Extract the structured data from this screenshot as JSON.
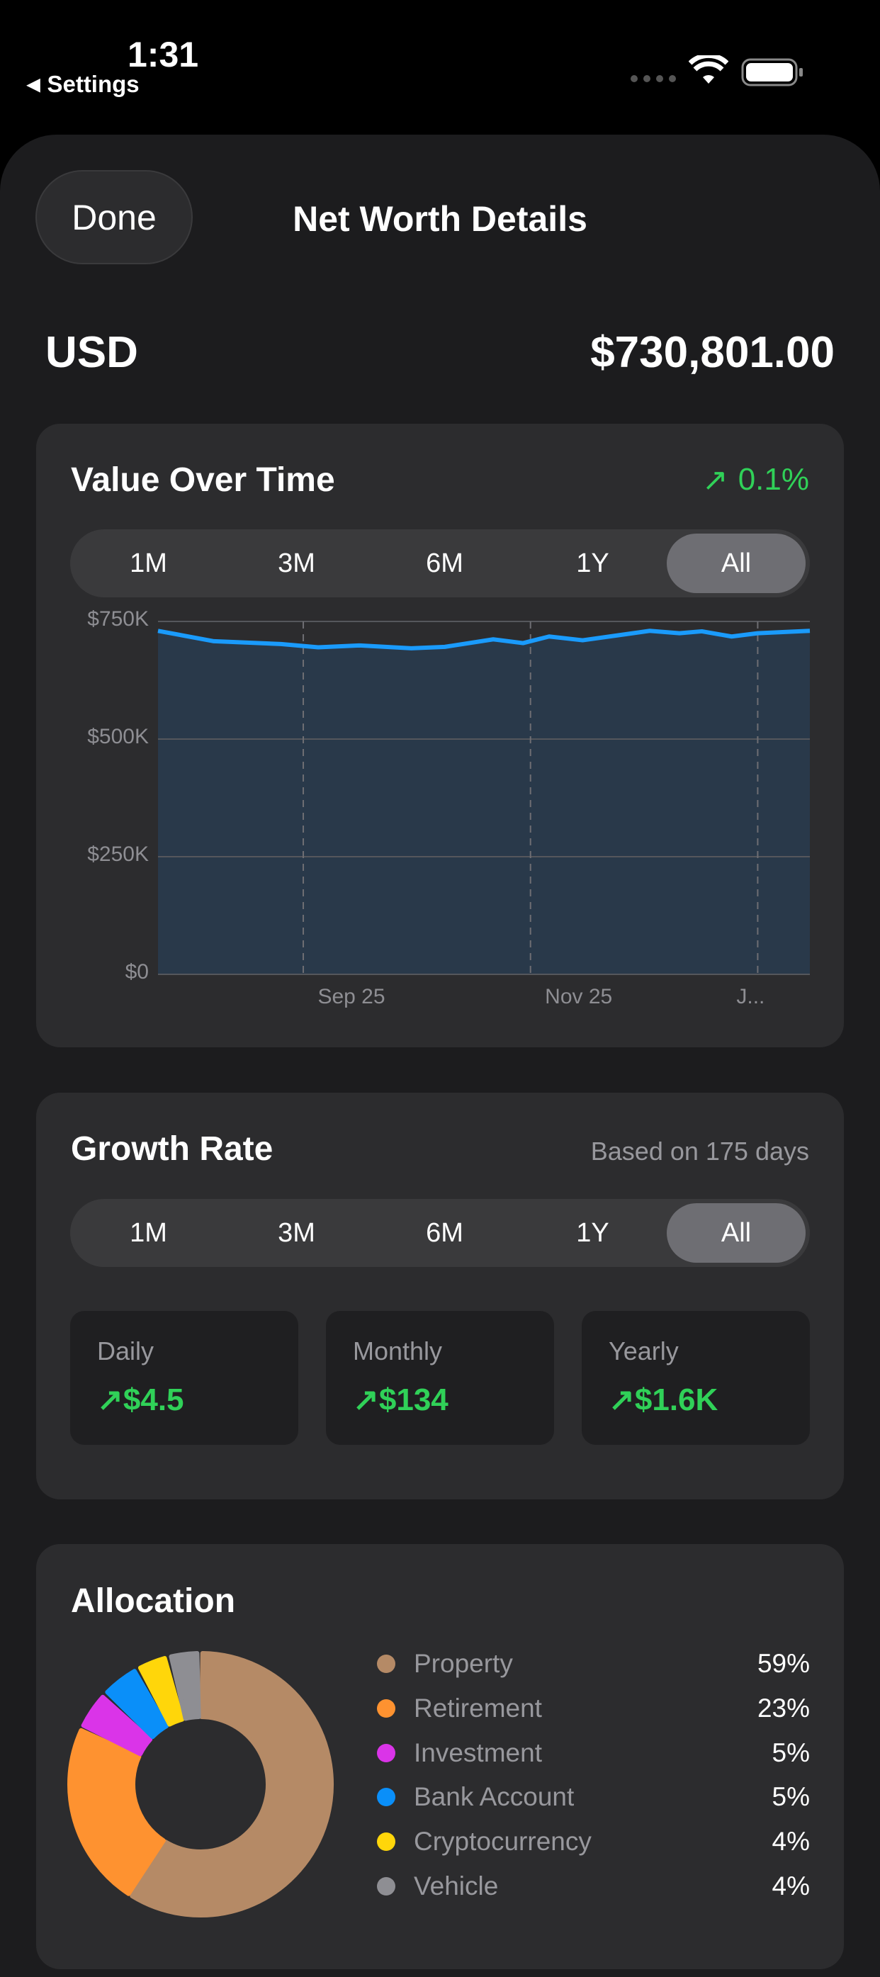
{
  "status_bar": {
    "time": "1:31",
    "back_label": "Settings"
  },
  "header": {
    "done_label": "Done",
    "title": "Net Worth Details"
  },
  "summary": {
    "currency": "USD",
    "total": "$730,801.00"
  },
  "value_over_time": {
    "title": "Value Over Time",
    "change": "0.1%",
    "change_color": "#30d158",
    "ranges": [
      "1M",
      "3M",
      "6M",
      "1Y",
      "All"
    ],
    "selected_range": "All"
  },
  "chart_data": {
    "type": "area",
    "title": "Value Over Time",
    "xlabel": "",
    "ylabel": "",
    "x_unit": "day",
    "x": [
      0,
      15,
      33,
      43,
      54,
      68,
      77,
      90,
      98,
      105,
      114,
      132,
      140,
      146,
      154,
      161,
      175
    ],
    "y": [
      730000,
      708000,
      702000,
      695000,
      699000,
      693000,
      696000,
      712000,
      704000,
      718000,
      710000,
      730000,
      725000,
      729000,
      718000,
      725000,
      730000
    ],
    "xlim": [
      0,
      175
    ],
    "ylim": [
      0,
      750000
    ],
    "yticks": [
      {
        "v": 750000,
        "label": "$750K"
      },
      {
        "v": 500000,
        "label": "$500K"
      },
      {
        "v": 250000,
        "label": "$250K"
      },
      {
        "v": 0,
        "label": "$0"
      }
    ],
    "xticks": [
      {
        "v": 39,
        "label": "Sep 25"
      },
      {
        "v": 100,
        "label": "Nov 25"
      },
      {
        "v": 161,
        "label": "J..."
      }
    ],
    "grid": true,
    "line_color": "#1a9bfc",
    "fill_color": "#29394a"
  },
  "growth_rate": {
    "title": "Growth Rate",
    "basis": "Based on 175 days",
    "ranges": [
      "1M",
      "3M",
      "6M",
      "1Y",
      "All"
    ],
    "selected_range": "All",
    "stats": [
      {
        "label": "Daily",
        "value": "$4.5"
      },
      {
        "label": "Monthly",
        "value": "$134"
      },
      {
        "label": "Yearly",
        "value": "$1.6K"
      }
    ]
  },
  "allocation": {
    "title": "Allocation",
    "items": [
      {
        "name": "Property",
        "pct": "59%",
        "value": 59,
        "color": "#b58a66"
      },
      {
        "name": "Retirement",
        "pct": "23%",
        "value": 23,
        "color": "#fe9230"
      },
      {
        "name": "Investment",
        "pct": "5%",
        "value": 5,
        "color": "#da34e8"
      },
      {
        "name": "Bank Account",
        "pct": "5%",
        "value": 5,
        "color": "#0a8ff9"
      },
      {
        "name": "Cryptocurrency",
        "pct": "4%",
        "value": 4,
        "color": "#ffd60a"
      },
      {
        "name": "Vehicle",
        "pct": "4%",
        "value": 4,
        "color": "#8e8e93"
      }
    ]
  }
}
